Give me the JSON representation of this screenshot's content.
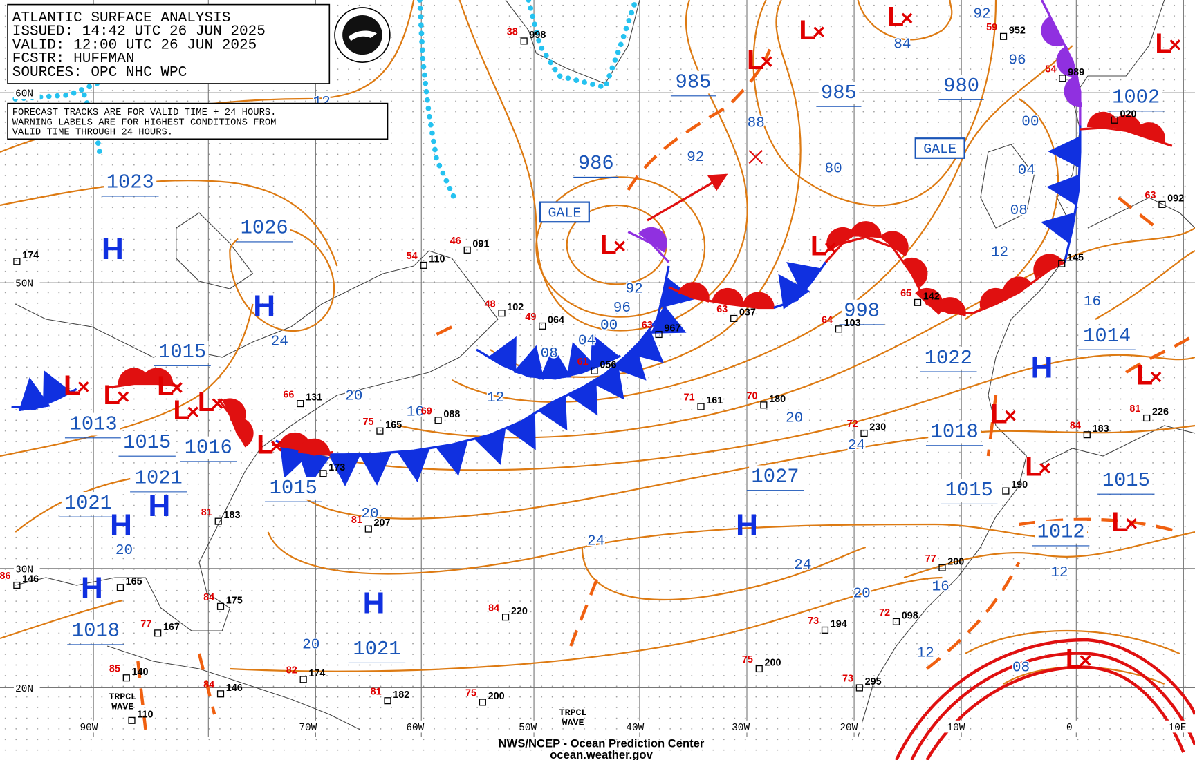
{
  "header": {
    "lines": [
      "ATLANTIC SURFACE ANALYSIS",
      "ISSUED: 14:42 UTC 26 JUN 2025",
      "VALID: 12:00 UTC 26 JUN 2025",
      "FCSTR:  HUFFMAN",
      "SOURCES: OPC NHC WPC"
    ]
  },
  "notice": [
    "FORECAST TRACKS ARE FOR VALID TIME + 24 HOURS.",
    "WARNING LABELS ARE FOR HIGHEST CONDITIONS FROM",
    "VALID TIME THROUGH 24 HOURS."
  ],
  "latitudes": [
    "60N",
    "50N",
    "30N",
    "20N"
  ],
  "longitudes": [
    "90W",
    "70W",
    "60W",
    "50W",
    "40W",
    "30W",
    "20W",
    "10W",
    "0",
    "10E"
  ],
  "centers": [
    "1023",
    "1026",
    "1015",
    "1013",
    "1015",
    "1016",
    "1021",
    "1021",
    "1015",
    "1018",
    "1021",
    "986",
    "985",
    "985",
    "980",
    "1002",
    "998",
    "1022",
    "1014",
    "1018",
    "1015",
    "1027",
    "1012",
    "1015"
  ],
  "isobar_labels": [
    "12",
    "24",
    "20",
    "16",
    "12",
    "08",
    "04",
    "00",
    "96",
    "92",
    "92",
    "88",
    "80",
    "00",
    "04",
    "08",
    "12",
    "16",
    "20",
    "24",
    "20",
    "24",
    "24",
    "20",
    "16",
    "12",
    "12",
    "08",
    "20",
    "20",
    "92",
    "84",
    "96"
  ],
  "highs": [
    "H",
    "H",
    "H",
    "H",
    "H",
    "H",
    "H",
    "H"
  ],
  "lows": [
    "L",
    "L",
    "L",
    "L",
    "L",
    "L",
    "L",
    "L",
    "L",
    "L",
    "L",
    "L",
    "L",
    "L",
    "L",
    "L",
    "L"
  ],
  "warnings": [
    "GALE",
    "GALE"
  ],
  "tropical_waves": [
    "TRPCL WAVE",
    "TRPCL WAVE"
  ],
  "stations": [
    {
      "pressure": "174"
    },
    {
      "pressure": "110",
      "temperature": "54"
    },
    {
      "pressure": "091",
      "temperature": "46"
    },
    {
      "pressure": "102",
      "temperature": "48"
    },
    {
      "pressure": "064",
      "temperature": "49"
    },
    {
      "pressure": "967",
      "temperature": "63"
    },
    {
      "pressure": "056",
      "temperature": "61"
    },
    {
      "pressure": "037",
      "temperature": "63"
    },
    {
      "pressure": "103",
      "temperature": "64"
    },
    {
      "pressure": "142",
      "temperature": "65"
    },
    {
      "pressure": "145"
    },
    {
      "pressure": "020"
    },
    {
      "pressure": "092",
      "temperature": "63"
    },
    {
      "pressure": "989",
      "temperature": "54"
    },
    {
      "pressure": "952",
      "temperature": "59"
    },
    {
      "pressure": "998",
      "temperature": "38"
    },
    {
      "pressure": "161",
      "temperature": "71"
    },
    {
      "pressure": "180",
      "temperature": "70"
    },
    {
      "pressure": "131",
      "temperature": "66"
    },
    {
      "pressure": "088",
      "temperature": "69"
    },
    {
      "pressure": "165",
      "temperature": "75"
    },
    {
      "pressure": "230",
      "temperature": "72"
    },
    {
      "pressure": "173"
    },
    {
      "pressure": "207",
      "temperature": "81"
    },
    {
      "pressure": "183",
      "temperature": "81"
    },
    {
      "pressure": "226",
      "temperature": "81"
    },
    {
      "pressure": "183",
      "temperature": "84"
    },
    {
      "pressure": "190"
    },
    {
      "pressure": "200",
      "temperature": "77"
    },
    {
      "pressure": "165"
    },
    {
      "pressure": "146",
      "temperature": "86"
    },
    {
      "pressure": "167",
      "temperature": "77"
    },
    {
      "pressure": "175",
      "temperature": "84"
    },
    {
      "pressure": "140",
      "temperature": "85"
    },
    {
      "pressure": "174",
      "temperature": "82"
    },
    {
      "pressure": "146",
      "temperature": "84"
    },
    {
      "pressure": "182",
      "temperature": "81"
    },
    {
      "pressure": "200",
      "temperature": "75"
    },
    {
      "pressure": "220",
      "temperature": "84"
    },
    {
      "pressure": "110"
    },
    {
      "pressure": "200",
      "temperature": "75"
    },
    {
      "pressure": "194",
      "temperature": "73"
    },
    {
      "pressure": "098",
      "temperature": "72"
    },
    {
      "pressure": "295",
      "temperature": "73"
    }
  ],
  "footer": [
    "NWS/NCEP - Ocean Prediction Center",
    "ocean.weather.gov"
  ]
}
